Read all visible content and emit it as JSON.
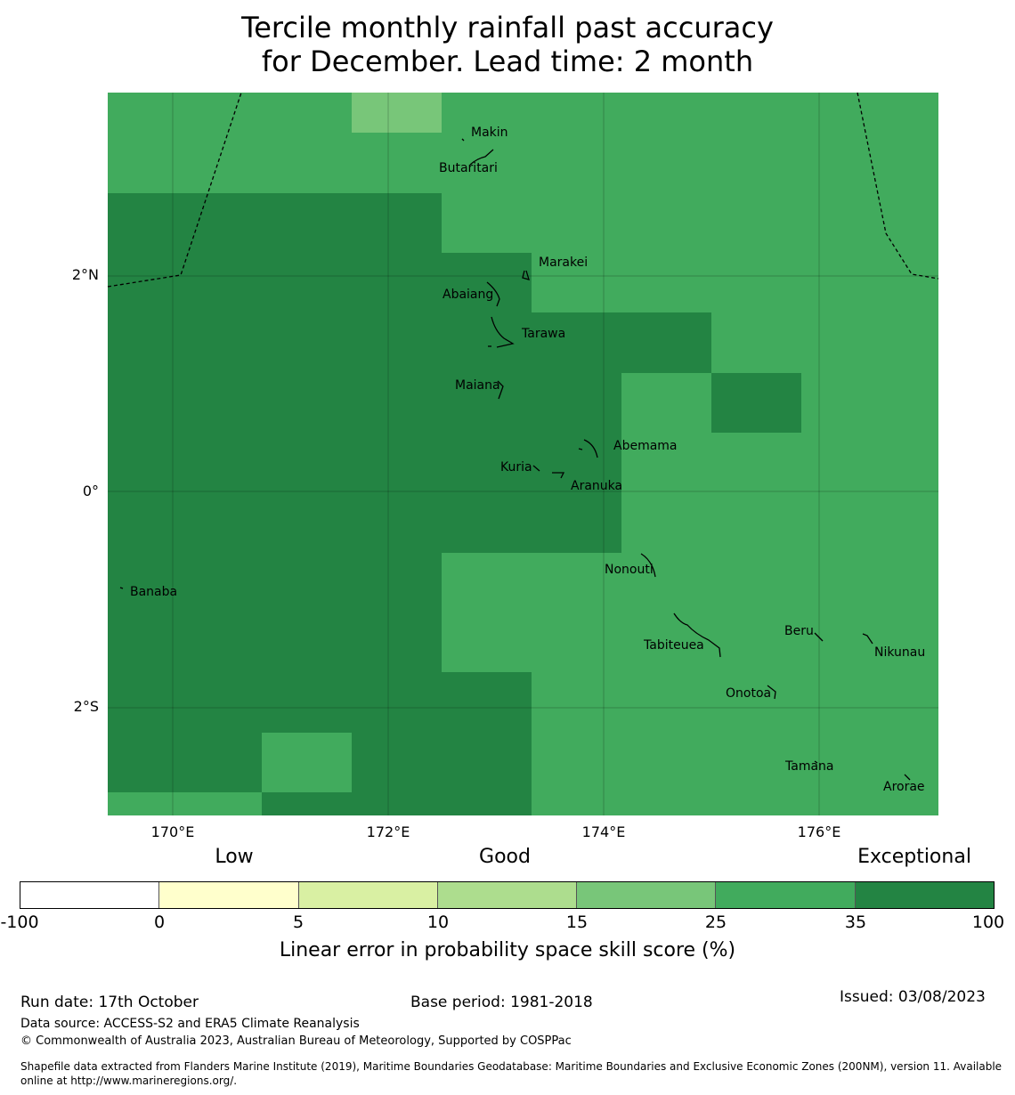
{
  "title_line1": "Tercile monthly rainfall past accuracy",
  "title_line2": "for December. Lead time: 2 month",
  "map": {
    "lat_labels": [
      "2°N",
      "0°",
      "2°S"
    ],
    "lon_labels": [
      "170°E",
      "172°E",
      "174°E",
      "176°E"
    ],
    "islands": [
      "Makin",
      "Butaritari",
      "Marakei",
      "Abaiang",
      "Tarawa",
      "Maiana",
      "Abemama",
      "Kuria",
      "Aranuka",
      "Nonouti",
      "Banaba",
      "Beru",
      "Tabiteuea",
      "Nikunau",
      "Onotoa",
      "Tamana",
      "Arorae"
    ]
  },
  "colorbar": {
    "category_labels": [
      "Low",
      "Good",
      "Exceptional"
    ],
    "ticks": [
      "-100",
      "0",
      "5",
      "10",
      "15",
      "25",
      "35",
      "100"
    ],
    "colors": [
      "#ffffff",
      "#ffffcc",
      "#d9f0a3",
      "#addd8e",
      "#78c679",
      "#41ab5d",
      "#238443"
    ],
    "title": "Linear error in probability space skill score (%)"
  },
  "footer": {
    "run_date": "Run date: 17th October",
    "base_period": "Base period: 1981-2018",
    "issued": "Issued: 03/08/2023",
    "data_source": "Data source: ACCESS-S2 and ERA5 Climate Reanalysis",
    "copyright": "© Commonwealth of Australia 2023, Australian Bureau of Meteorology, Supported by COSPPac",
    "shapefile_line1": "Shapefile data extracted from Flanders Marine Institute (2019), Maritime Boundaries Geodatabase: Maritime Boundaries and Exclusive Economic Zones (200NM), version 11. Available",
    "shapefile_line2": "online at http://www.marineregions.org/."
  }
}
